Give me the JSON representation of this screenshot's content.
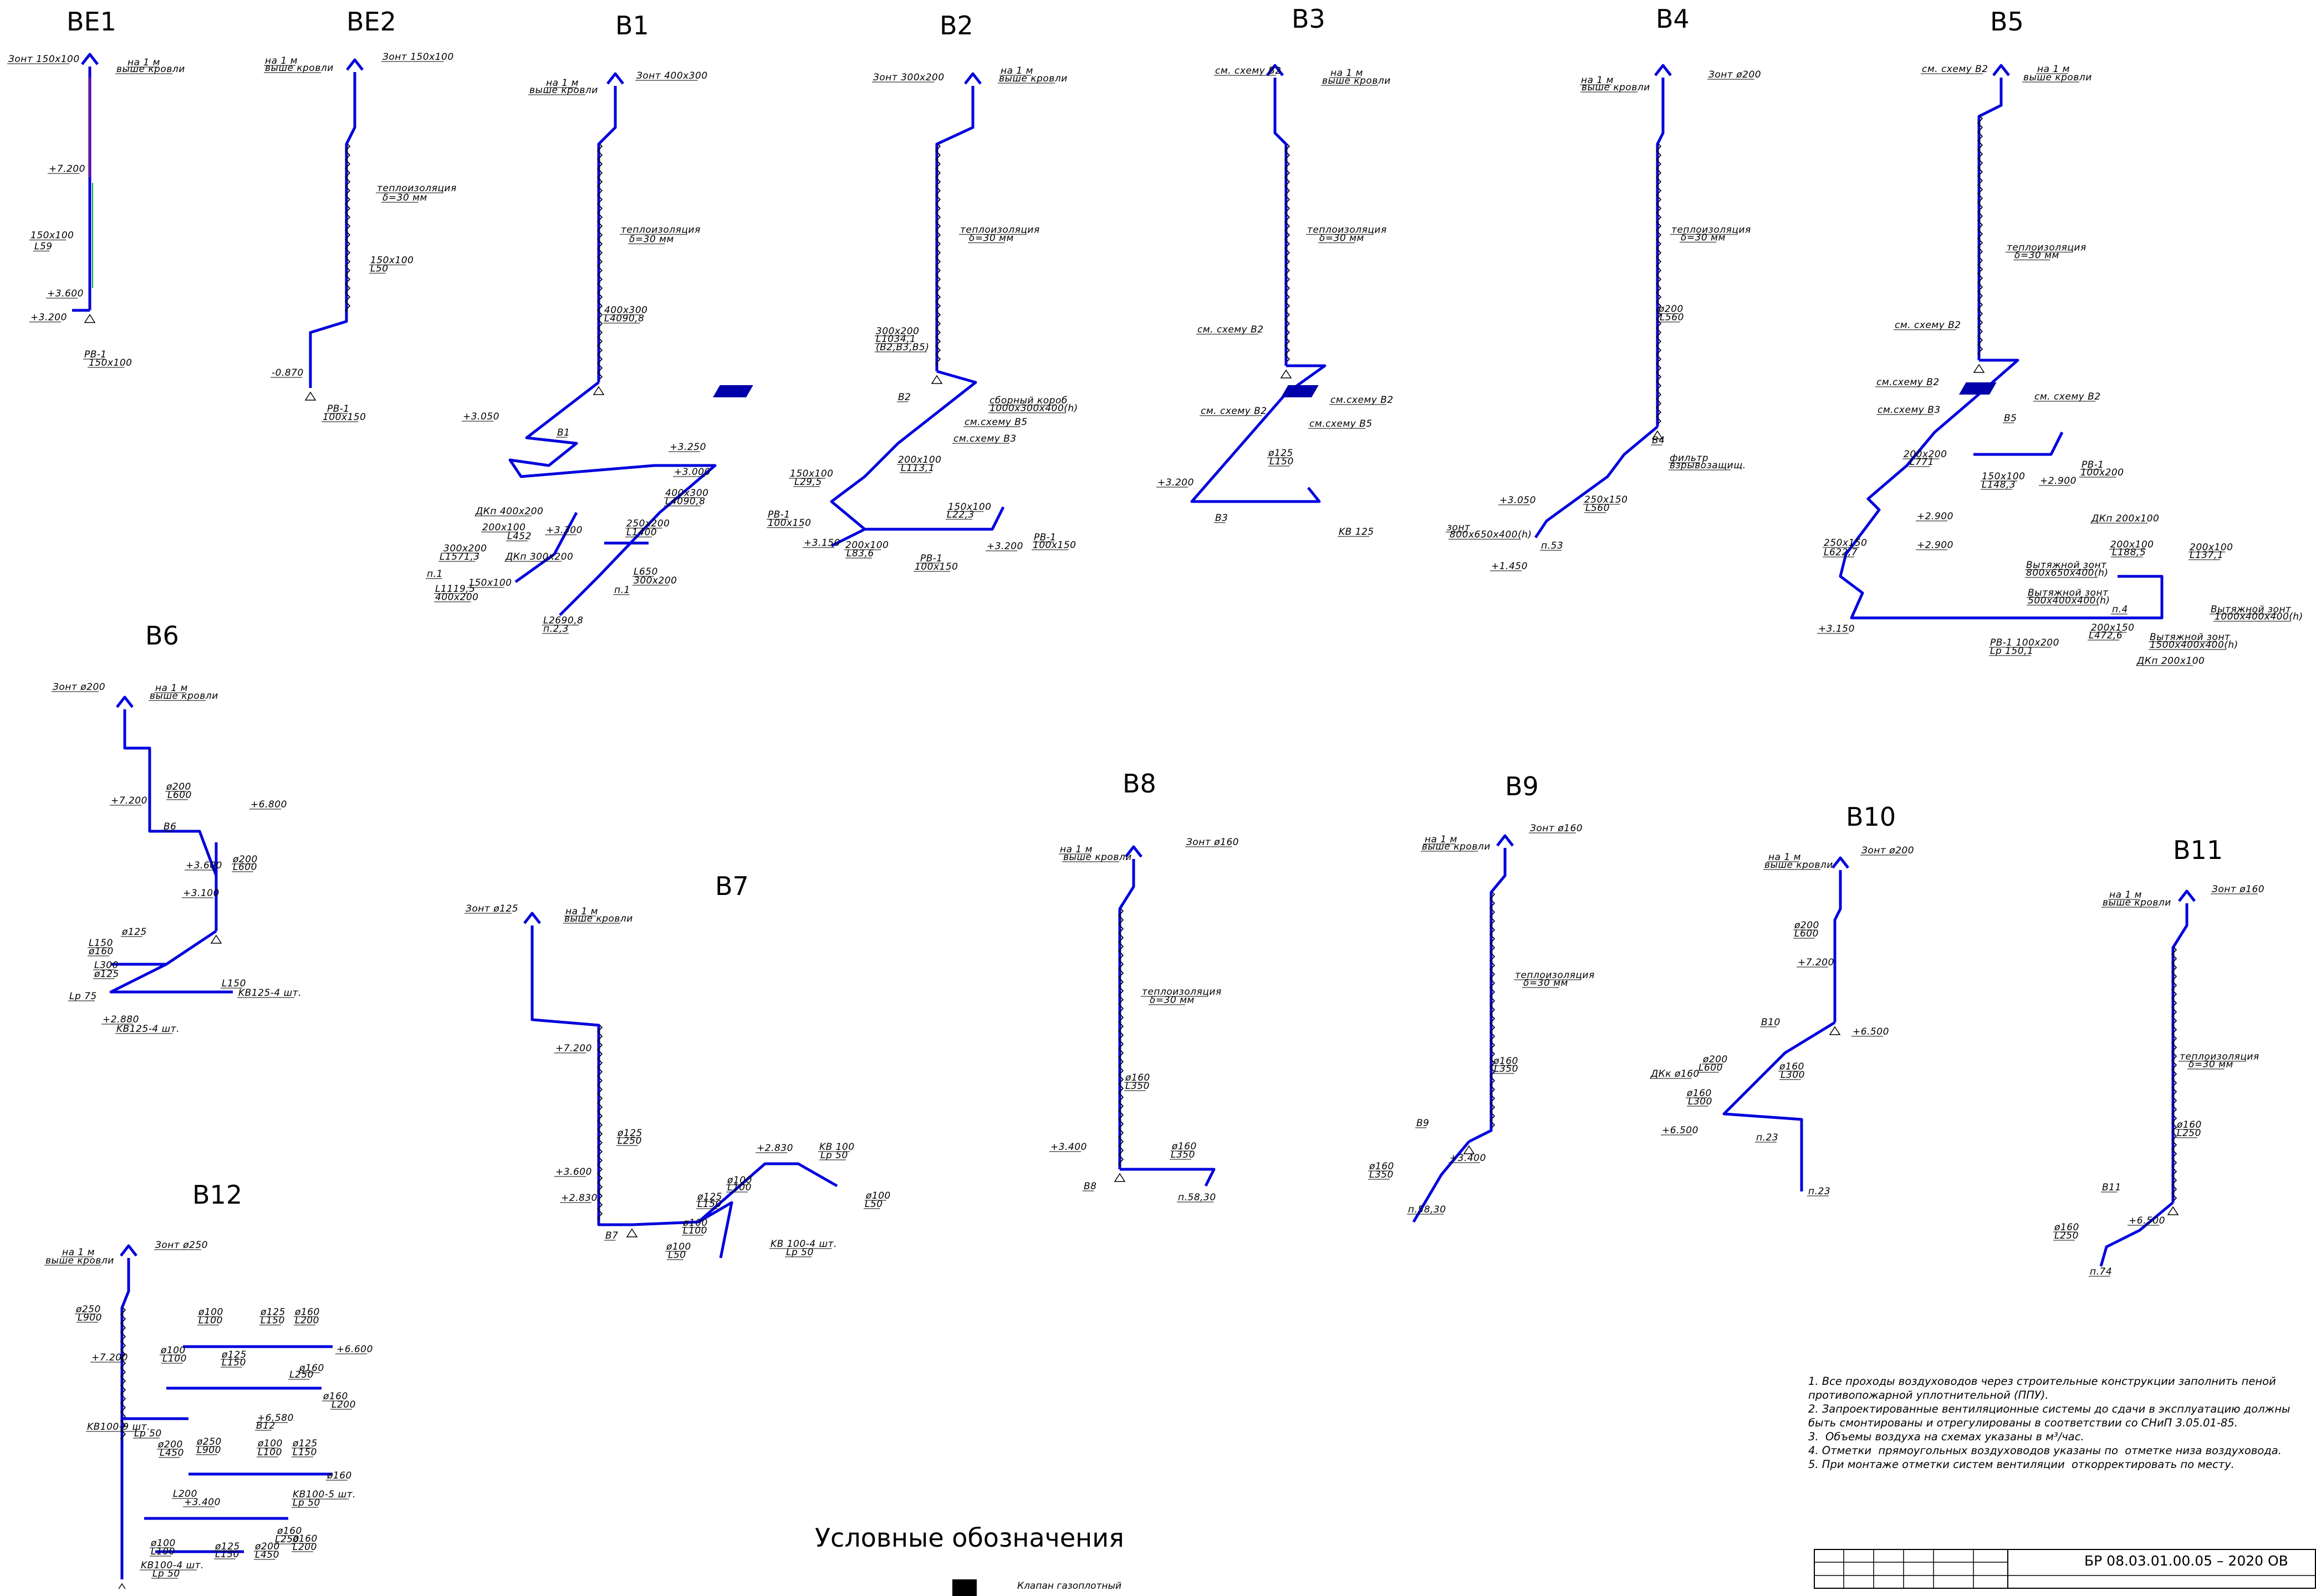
{
  "colors": {
    "duct": "#0000dd",
    "line": "#000000",
    "insulation": "#000000",
    "accent": "#cc0044",
    "green": "#00aa55"
  },
  "systems": [
    {
      "id": "BE1",
      "title": "BE1",
      "labels": [
        "Зонт 150x100",
        "на 1 м",
        "выше кровли",
        "+7.200",
        "150x100",
        "L59",
        "+3.600",
        "+3.200",
        "PB-1",
        "150x100"
      ]
    },
    {
      "id": "BE2",
      "title": "BE2",
      "labels": [
        "на 1 м",
        "выше кровли",
        "Зонт 150x100",
        "теплоизоляция",
        "δ=30 мм",
        "150x100",
        "L50",
        "-0.870",
        "PB-1",
        "100x150"
      ]
    },
    {
      "id": "B1",
      "title": "B1",
      "labels": [
        "на 1 м",
        "выше кровли",
        "Зонт 400x300",
        "теплоизоляция",
        "δ=30 мм",
        "400x300",
        "L4090,8",
        "+3.050",
        "B1",
        "+3.250",
        "+3.000",
        "400x300",
        "L4090,8",
        "ДКп 400x200",
        "200x100",
        "L452",
        "+3.300",
        "250x200",
        "L1400",
        "300x200",
        "L1571,3",
        "ДКп 300x200",
        "п.1",
        "150x100",
        "L650",
        "300x200",
        "L1119,5",
        "400x200",
        "L2690,8",
        "п.2,3",
        "п.1"
      ]
    },
    {
      "id": "B2",
      "title": "B2",
      "labels": [
        "Зонт 300x200",
        "на 1 м",
        "выше кровли",
        "теплоизоляция",
        "δ=30 мм",
        "300x200",
        "L1034,1",
        "(B2,B3,B5)",
        "B2",
        "сборный короб",
        "1000x300x400(h)",
        "см.схему B5",
        "см.схему B3",
        "150x100",
        "L29,5",
        "200x100",
        "L113,1",
        "PB-1",
        "100x150",
        "150x100",
        "L22,3",
        "+3.150",
        "200x100",
        "L83,6",
        "PB-1",
        "100x150",
        "+3.200",
        "PB-1",
        "100x150"
      ]
    },
    {
      "id": "B3",
      "title": "B3",
      "labels": [
        "см. схему B2",
        "на 1 м",
        "выше кровли",
        "теплоизоляция",
        "δ=30 мм",
        "см. схему B2",
        "см.схему B2",
        "см. схему B2",
        "см.схему B5",
        "ø125",
        "L150",
        "+3.200",
        "B3",
        "KB 125"
      ]
    },
    {
      "id": "B4",
      "title": "B4",
      "labels": [
        "на 1 м",
        "выше кровли",
        "Зонт ø200",
        "теплоизоляция",
        "δ=30 мм",
        "ø200",
        "L560",
        "B4",
        "фильтр",
        "взрывозащищ.",
        "+3.050",
        "250x150",
        "L560",
        "зонт",
        "800x650x400(h)",
        "п.53",
        "+1.450"
      ]
    },
    {
      "id": "B5",
      "title": "B5",
      "labels": [
        "см. схему B2",
        "на 1 м",
        "выше кровли",
        "теплоизоляция",
        "δ=30 мм",
        "см. схему B2",
        "см.схему B2",
        "см.схему B3",
        "см. схему B2",
        "B5",
        "200x200",
        "L771",
        "150x100",
        "L148,3",
        "+2.900",
        "PB-1",
        "100x200",
        "+2.900",
        "+2.900",
        "250x150",
        "L622,7",
        "ДКп 200x100",
        "200x100",
        "L188,5",
        "200x100",
        "L137,1",
        "Вытяжной зонт",
        "800x650x400(h)",
        "Вытяжной зонт",
        "500x400x400(h)",
        "п.4",
        "Вытяжной зонт",
        "1000x400x400(h)",
        "Вытяжной зонт",
        "1500x400x400(h)",
        "+3.150",
        "200x150",
        "L472,6",
        "PB-1 100x200",
        "Lp 150,1",
        "ДКп 200x100"
      ]
    },
    {
      "id": "B6",
      "title": "B6",
      "labels": [
        "Зонт ø200",
        "на 1 м",
        "выше кровли",
        "ø200",
        "L600",
        "+7.200",
        "+6.800",
        "B6",
        "+3.600",
        "ø200",
        "L600",
        "+3.100",
        "ø125",
        "L150",
        "ø160",
        "L300",
        "ø125",
        "L150",
        "KB125-4 шт.",
        "Lp 75",
        "+2.880",
        "KB125-4 шт.",
        "Lp 75"
      ]
    },
    {
      "id": "B7",
      "title": "B7",
      "labels": [
        "Зонт ø125",
        "на 1 м",
        "выше кровли",
        "+7.200",
        "ø125",
        "L250",
        "+3.600",
        "+2.830",
        "B7",
        "ø125",
        "L150",
        "ø100",
        "L100",
        "ø100",
        "L100",
        "+2.830",
        "ø100",
        "L50",
        "KB 100",
        "Lp 50",
        "ø100",
        "L50",
        "KB 100-4 шт.",
        "Lp 50"
      ]
    },
    {
      "id": "B8",
      "title": "B8",
      "labels": [
        "на 1 м",
        "выше кровли",
        "Зонт ø160",
        "теплоизоляция",
        "δ=30 мм",
        "ø160",
        "L350",
        "+3.400",
        "ø160",
        "L350",
        "B8",
        "п.58,30"
      ]
    },
    {
      "id": "B9",
      "title": "B9",
      "labels": [
        "на 1 м",
        "выше кровли",
        "Зонт ø160",
        "теплоизоляция",
        "δ=30 мм",
        "ø160",
        "L350",
        "B9",
        "+3.400",
        "ø160",
        "L350",
        "п.58,30"
      ]
    },
    {
      "id": "B10",
      "title": "B10",
      "labels": [
        "на 1 м",
        "выше кровли",
        "Зонт ø200",
        "ø200",
        "L600",
        "+7.200",
        "B10",
        "+6.500",
        "ø200",
        "L600",
        "ДКк ø160",
        "ø160",
        "L300",
        "ø160",
        "L300",
        "+6.500",
        "п.23",
        "п.23"
      ]
    },
    {
      "id": "B11",
      "title": "B11",
      "labels": [
        "на 1 м",
        "выше кровли",
        "Зонт ø160",
        "теплоизоляция",
        "δ=30 мм",
        "ø160",
        "L250",
        "B11",
        "+6.500",
        "ø160",
        "L250",
        "п.74"
      ]
    },
    {
      "id": "B12",
      "title": "B12",
      "labels": [
        "на 1 м",
        "выше кровли",
        "Зонт ø250",
        "ø250",
        "L900",
        "ø100",
        "L100",
        "ø125",
        "L150",
        "ø160",
        "L200",
        "+6.600",
        "+7.200",
        "ø100",
        "L100",
        "ø125",
        "L150",
        "ø160",
        "L250",
        "ø160",
        "L200",
        "KB100-9 шт.",
        "Lp 50",
        "+6.580",
        "B12",
        "ø200",
        "L450",
        "ø250",
        "L900",
        "ø100",
        "L100",
        "ø125",
        "L150",
        "ø160",
        "L200",
        "+3.400",
        "KB100-5 шт.",
        "Lp 50",
        "ø160",
        "L250",
        "ø100",
        "L100",
        "ø125",
        "L150",
        "ø200",
        "L450",
        "ø160",
        "L200",
        "KB100-4 шт.",
        "Lp 50"
      ]
    }
  ],
  "notes": [
    "1. Все проходы воздуховодов через строительные конструкции заполнить пеной противопожарной уплотнительной (ППУ).",
    "2. Запроектированные вентиляционные системы до сдачи в эксплуатацию должны быть смонтированы и отрегулированы в соответствии со СНиП 3.05.01-85.",
    "3.  Объемы воздуха на схемах указаны в м³/час.",
    "4. Отметки  прямоугольных воздуховодов указаны по  отметке низа воздуховода.",
    "5. При монтаже отметки систем вентиляции  откорректировать по месту."
  ],
  "legend": {
    "title": "Условные обозначения",
    "items": [
      "Клапан газоплотный"
    ]
  },
  "stamp": {
    "code": "БР 08.03.01.00.05 – 2020 ОВ"
  }
}
